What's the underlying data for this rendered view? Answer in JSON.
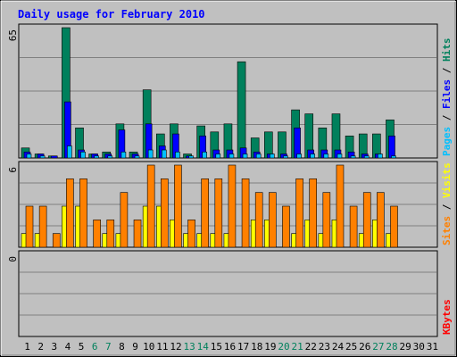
{
  "chart_data": {
    "type": "bar",
    "title": "Daily usage for February 2010",
    "colors": {
      "background": "#c0c0c0",
      "plot": "#c0c0c0",
      "title": "#0000ff",
      "hits": "#00805c",
      "files": "#0000ff",
      "pages": "#00c0ff",
      "visits": "#ffff00",
      "sites": "#ff8000",
      "kbytes": "#ff0000",
      "weekend_label": "#00805c",
      "weekday_label": "#000000",
      "gridline": "#808080"
    },
    "x_labels": [
      "1",
      "2",
      "3",
      "4",
      "5",
      "6",
      "7",
      "8",
      "9",
      "10",
      "11",
      "12",
      "13",
      "14",
      "15",
      "16",
      "17",
      "18",
      "19",
      "20",
      "21",
      "22",
      "23",
      "24",
      "25",
      "26",
      "27",
      "28",
      "29",
      "30",
      "31"
    ],
    "weekend_days": [
      6,
      7,
      13,
      14,
      20,
      21,
      27,
      28
    ],
    "panels": [
      {
        "name": "hits-files-pages",
        "ymax_label": "65",
        "ymax": 65,
        "legend": [
          {
            "text": "Pages",
            "color_key": "pages"
          },
          {
            "text": "Files",
            "color_key": "files"
          },
          {
            "text": "Hits",
            "color_key": "hits"
          }
        ],
        "series": [
          {
            "name": "Hits",
            "color_key": "hits",
            "values": [
              5,
              2,
              1,
              65,
              15,
              2,
              3,
              17,
              3,
              34,
              12,
              17,
              2,
              16,
              13,
              17,
              48,
              10,
              13,
              13,
              24,
              22,
              15,
              22,
              11,
              12,
              12,
              19,
              0,
              0,
              0
            ]
          },
          {
            "name": "Files",
            "color_key": "files",
            "values": [
              3,
              2,
              1,
              28,
              4,
              2,
              2,
              14,
              2,
              17,
              6,
              12,
              1,
              11,
              4,
              4,
              5,
              3,
              2,
              2,
              15,
              4,
              4,
              4,
              3,
              2,
              2,
              11,
              0,
              0,
              0
            ]
          },
          {
            "name": "Pages",
            "color_key": "pages",
            "values": [
              2,
              1,
              0,
              6,
              3,
              1,
              1,
              3,
              1,
              4,
              4,
              3,
              1,
              3,
              2,
              2,
              2,
              2,
              2,
              1,
              2,
              2,
              2,
              2,
              1,
              1,
              2,
              1,
              0,
              0,
              0
            ]
          }
        ]
      },
      {
        "name": "visits-sites",
        "ymax_label": "6",
        "ymax": 6,
        "legend": [
          {
            "text": "Sites",
            "color_key": "sites"
          },
          {
            "text": "Visits",
            "color_key": "visits"
          }
        ],
        "series": [
          {
            "name": "Visits",
            "color_key": "visits",
            "values": [
              1,
              1,
              0,
              3,
              3,
              0,
              1,
              1,
              0,
              3,
              3,
              2,
              1,
              1,
              1,
              1,
              0,
              2,
              2,
              0,
              1,
              2,
              1,
              2,
              0,
              1,
              2,
              1,
              0,
              0,
              0
            ]
          },
          {
            "name": "Sites",
            "color_key": "sites",
            "values": [
              3,
              3,
              1,
              5,
              5,
              2,
              2,
              4,
              2,
              6,
              5,
              6,
              2,
              5,
              5,
              6,
              5,
              4,
              4,
              3,
              5,
              5,
              4,
              6,
              3,
              4,
              4,
              3,
              0,
              0,
              0
            ]
          }
        ]
      },
      {
        "name": "kbytes",
        "ymax_label": "0",
        "ymax": 0,
        "legend": [
          {
            "text": "KBytes",
            "color_key": "kbytes"
          }
        ],
        "series": [
          {
            "name": "KBytes",
            "color_key": "kbytes",
            "values": [
              0,
              0,
              0,
              0,
              0,
              0,
              0,
              0,
              0,
              0,
              0,
              0,
              0,
              0,
              0,
              0,
              0,
              0,
              0,
              0,
              0,
              0,
              0,
              0,
              0,
              0,
              0,
              0,
              0,
              0,
              0
            ]
          }
        ]
      }
    ]
  }
}
